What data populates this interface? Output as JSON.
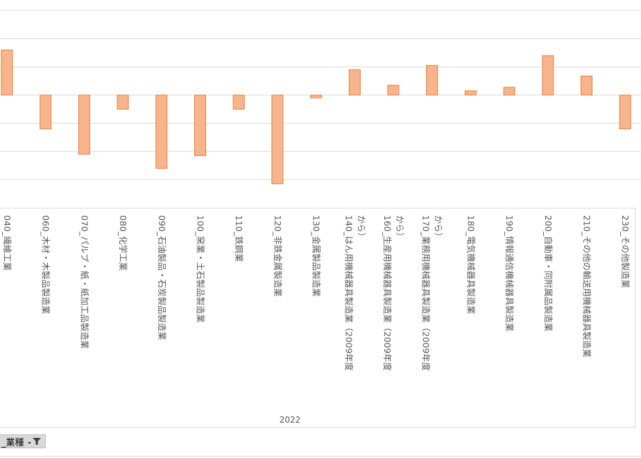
{
  "chart_data": {
    "type": "bar",
    "categories": [
      "040_繊維工業",
      "060_木材・木製品製造業",
      "070_パルプ・紙・紙加工品製造業",
      "080_化学工業",
      "090_石油製品・石炭製品製造業",
      "100_窯業・土石製品製造業",
      "110_鉄鋼業",
      "120_非鉄金属製造業",
      "130_金属製品製造業",
      "140_はん用機械器具製造業（2009年度から）",
      "160_生産用機械器具製造業（2009年度から）",
      "170_業務用機械器具製造業（2009年度から）",
      "180_電気機械器具製造業",
      "190_情報通信機械器具製造業",
      "200_自動車・同附属品製造業",
      "210_その他の輸送用機械器具製造業",
      "230_その他製造業"
    ],
    "category_display": [
      [
        "040_繊維工業"
      ],
      [
        "060_木材・木製品製造業"
      ],
      [
        "070_パルプ・紙・紙加工品製造業"
      ],
      [
        "080_化学工業"
      ],
      [
        "090_石油製品・石炭製品製造業"
      ],
      [
        "100_窯業・土石製品製造業"
      ],
      [
        "110_鉄鋼業"
      ],
      [
        "120_非鉄金属製造業"
      ],
      [
        "130_金属製品製造業"
      ],
      [
        "140_はん用機械器具製造業（2009年度",
        "から）"
      ],
      [
        "160_生産用機械器具製造業（2009年度",
        "から）"
      ],
      [
        "170_業務用機械器具製造業（2009年度",
        "から）"
      ],
      [
        "180_電気機械器具製造業"
      ],
      [
        "190_情報通信機械器具製造業"
      ],
      [
        "200_自動車・同附属品製造業"
      ],
      [
        "210_その他の輸送用機械器具製造業"
      ],
      [
        "230_その他製造業"
      ]
    ],
    "values": [
      3.2,
      -2.4,
      -4.2,
      -1.0,
      -5.2,
      -4.3,
      -1.0,
      -6.3,
      -0.2,
      1.8,
      0.7,
      2.1,
      0.3,
      0.55,
      2.8,
      1.35,
      -2.4
    ],
    "group_label": "2022",
    "ylim": [
      -7,
      6.7
    ],
    "gridlines": [
      -6,
      -4,
      -2,
      0,
      2,
      4,
      6
    ],
    "y_tick_labels_visible": false,
    "legend": "none",
    "bar_fill": "#f8b48c",
    "bar_stroke": "#ed7d31",
    "grid": true
  },
  "field_button": {
    "label": "_業種",
    "icon": "dropdown-filter-icon"
  }
}
